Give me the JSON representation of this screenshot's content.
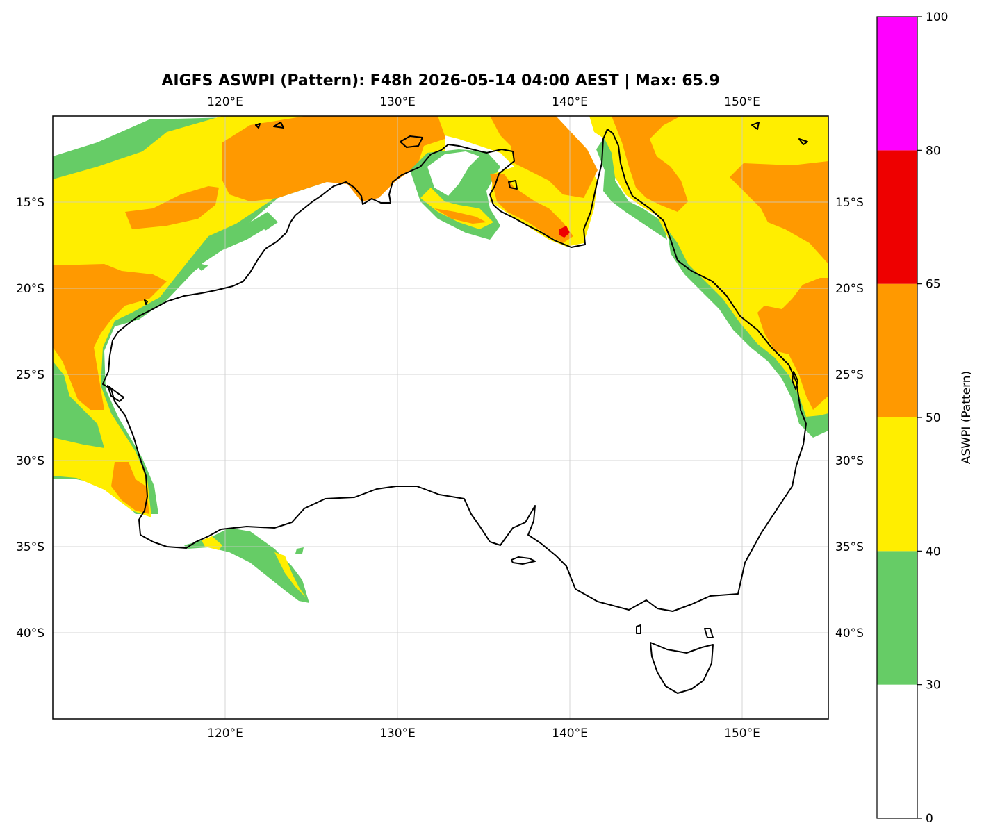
{
  "title": "AIGFS ASWPI (Pattern): F48h 2026-05-14 04:00 AEST | Max: 65.9",
  "colorbar": {
    "label": "ASWPI (Pattern)",
    "ticks": [
      "0",
      "30",
      "40",
      "50",
      "65",
      "80",
      "100"
    ],
    "levels": [
      0,
      30,
      40,
      50,
      65,
      80,
      100
    ],
    "colors": [
      "#ffffff",
      "#66cc66",
      "#ffee00",
      "#ff9900",
      "#ee0000",
      "#ff00ff"
    ]
  },
  "map": {
    "lon_range": [
      110,
      155
    ],
    "lat_range": [
      -45,
      -10
    ],
    "lon_ticks": [
      {
        "value": 120,
        "label": "120°E"
      },
      {
        "value": 130,
        "label": "130°E"
      },
      {
        "value": 140,
        "label": "140°E"
      },
      {
        "value": 150,
        "label": "150°E"
      }
    ],
    "lat_ticks": [
      {
        "value": -15,
        "label": "15°S"
      },
      {
        "value": -20,
        "label": "20°S"
      },
      {
        "value": -25,
        "label": "25°S"
      },
      {
        "value": -30,
        "label": "30°S"
      },
      {
        "value": -35,
        "label": "35°S"
      },
      {
        "value": -40,
        "label": "40°S"
      }
    ],
    "gridlines": true,
    "max_marker": {
      "lon": 139.8,
      "lat": -16.7,
      "value": 65.9
    }
  }
}
